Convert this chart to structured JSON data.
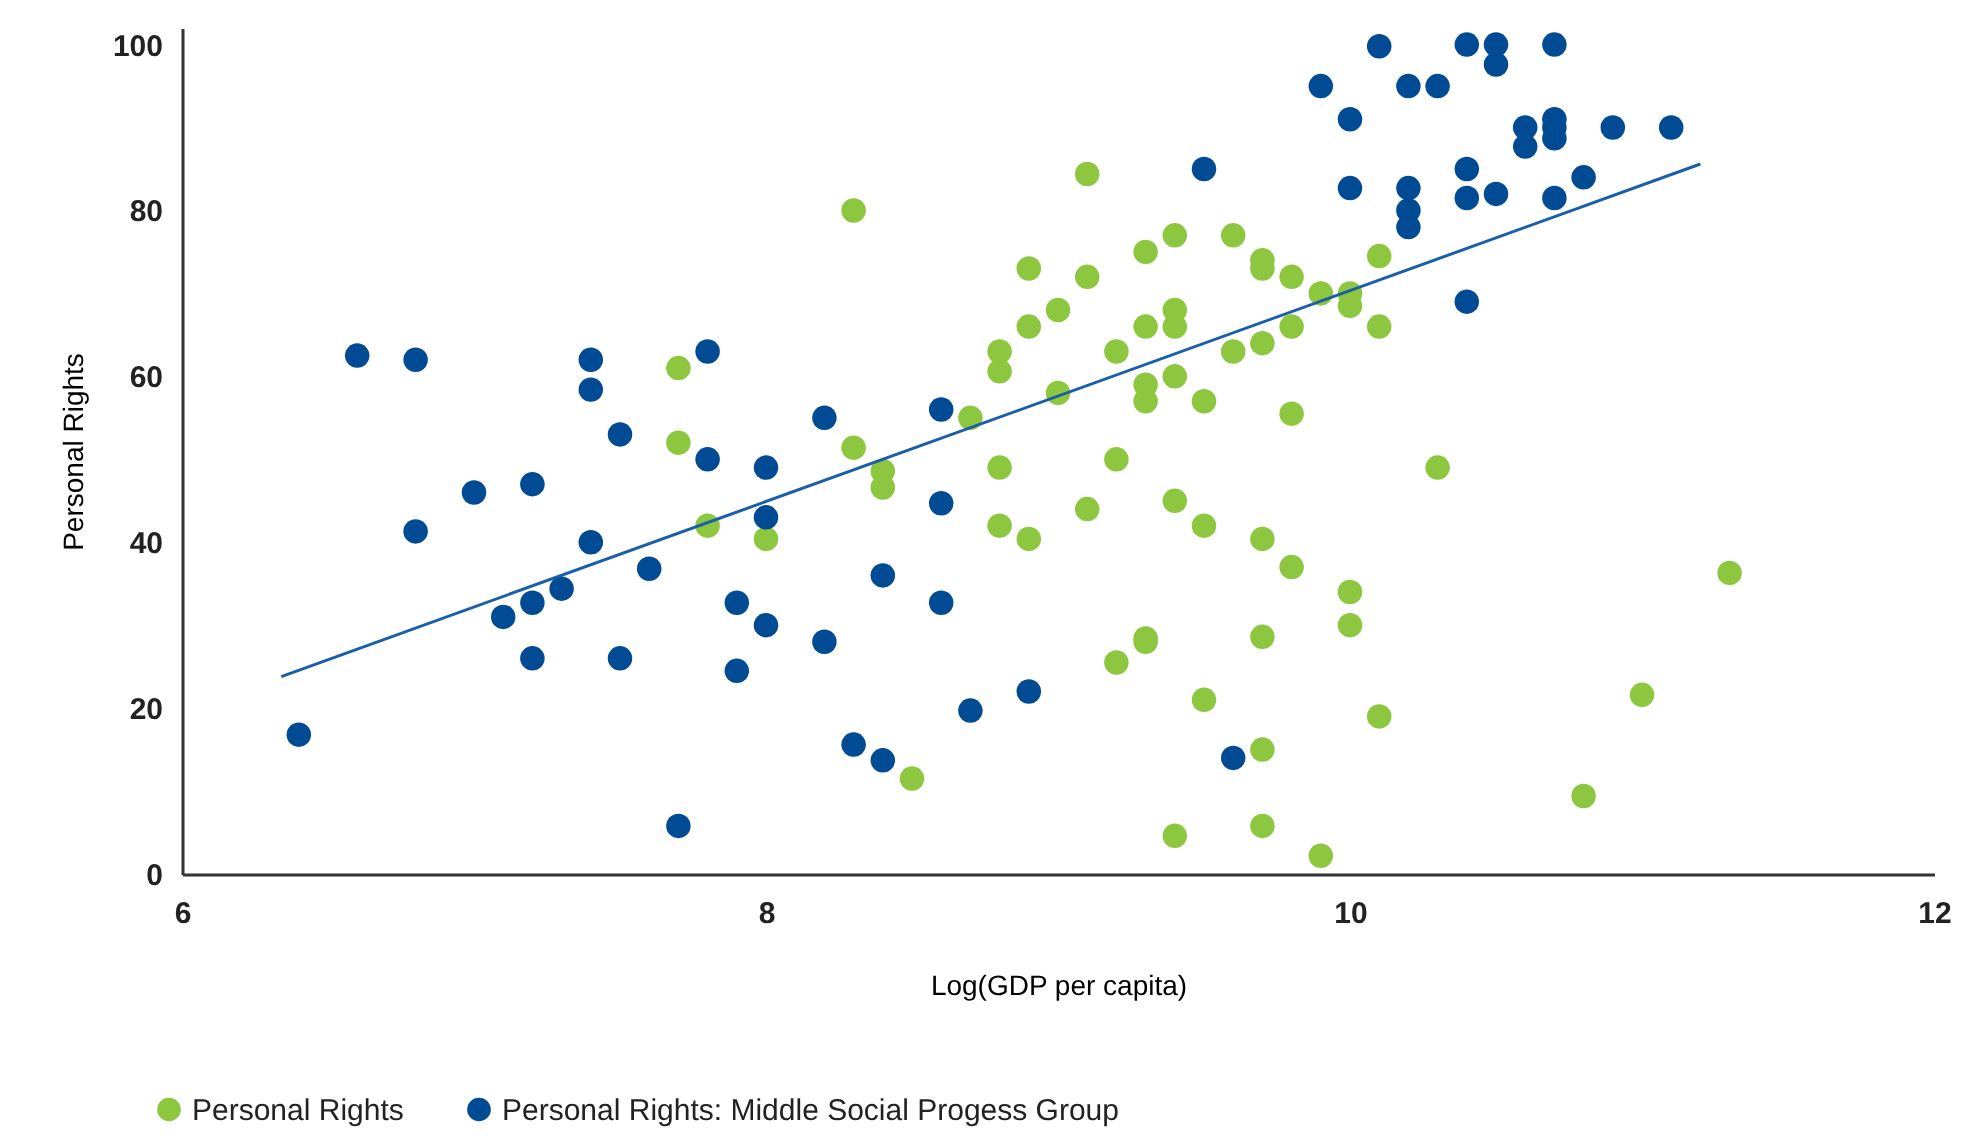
{
  "chart_data": {
    "type": "scatter",
    "xlabel": "Log(GDP per capita)",
    "ylabel": "Personal Rights",
    "xlim": [
      6,
      12
    ],
    "ylim": [
      0,
      102
    ],
    "xticks": [
      6,
      8,
      10,
      12
    ],
    "yticks": [
      0,
      20,
      40,
      60,
      80,
      100
    ],
    "grid": false,
    "legend": "bottom",
    "series": [
      {
        "name": "Personal Rights",
        "color": "#8dc63f",
        "marker": "circle",
        "x": [
          7.7,
          7.7,
          7.8,
          8.0,
          8.3,
          8.3,
          8.4,
          8.4,
          8.5,
          8.7,
          8.8,
          8.8,
          8.8,
          8.8,
          8.9,
          8.9,
          8.9,
          9.0,
          9.0,
          9.1,
          9.1,
          9.1,
          9.2,
          9.2,
          9.2,
          9.3,
          9.3,
          9.3,
          9.3,
          9.3,
          9.3,
          9.4,
          9.4,
          9.4,
          9.4,
          9.4,
          9.4,
          9.5,
          9.5,
          9.5,
          9.6,
          9.6,
          9.7,
          9.7,
          9.7,
          9.7,
          9.7,
          9.7,
          9.7,
          9.8,
          9.8,
          9.8,
          9.8,
          9.9,
          9.9,
          10.0,
          10.0,
          10.0,
          10.0,
          10.1,
          10.1,
          10.1,
          10.3,
          10.8,
          11.0,
          11.3
        ],
        "values": [
          61,
          52,
          42,
          40.4,
          80,
          51.4,
          48.6,
          46.6,
          11.5,
          55,
          63,
          60.6,
          49,
          42,
          73,
          66,
          40.4,
          68,
          58,
          84.4,
          72,
          44,
          63,
          50,
          25.5,
          75,
          66,
          59,
          57,
          28.4,
          28,
          77,
          68,
          66,
          60,
          45,
          4.6,
          57,
          42,
          21,
          77,
          63,
          74,
          73,
          64,
          40.4,
          28.6,
          15,
          5.8,
          72,
          66,
          55.5,
          37,
          70,
          2.2,
          70,
          68.5,
          34,
          30,
          74.5,
          66,
          19,
          49,
          9.4,
          21.6,
          36.3
        ]
      },
      {
        "name": "Personal Rights: Middle Social Progess Group",
        "color": "#004b93",
        "marker": "circle",
        "x": [
          6.4,
          6.6,
          6.8,
          6.8,
          7.0,
          7.1,
          7.2,
          7.2,
          7.2,
          7.3,
          7.4,
          7.4,
          7.4,
          7.5,
          7.5,
          7.6,
          7.7,
          7.8,
          7.8,
          7.9,
          7.9,
          8.0,
          8.0,
          8.0,
          8.2,
          8.2,
          8.3,
          8.4,
          8.4,
          8.6,
          8.6,
          8.6,
          8.7,
          8.9,
          9.5,
          9.6,
          9.9,
          10.0,
          10.0,
          10.1,
          10.2,
          10.2,
          10.2,
          10.2,
          10.3,
          10.4,
          10.4,
          10.4,
          10.4,
          10.5,
          10.5,
          10.5,
          10.6,
          10.6,
          10.7,
          10.7,
          10.7,
          10.7,
          10.7,
          10.8,
          10.9,
          11.1
        ],
        "values": [
          16.8,
          62.5,
          62,
          41.3,
          46,
          31,
          26,
          47,
          32.7,
          34.4,
          62,
          58.4,
          40,
          53,
          26,
          36.8,
          5.8,
          63,
          50,
          32.7,
          24.5,
          49,
          43,
          30,
          55,
          28,
          15.6,
          36,
          13.7,
          56,
          44.7,
          32.7,
          19.7,
          22,
          85,
          14,
          95,
          91,
          82.7,
          99.8,
          95,
          82.7,
          80,
          78,
          95,
          100,
          85,
          81.5,
          69,
          100,
          97.6,
          82,
          90,
          87.7,
          100,
          91,
          90,
          88.7,
          81.5,
          84,
          90,
          90
        ]
      },
      {
        "type": "line",
        "color": "#1a5ea8",
        "marker": "none",
        "x": [
          6.34,
          11.2
        ],
        "values": [
          23.8,
          85.6
        ]
      }
    ]
  }
}
